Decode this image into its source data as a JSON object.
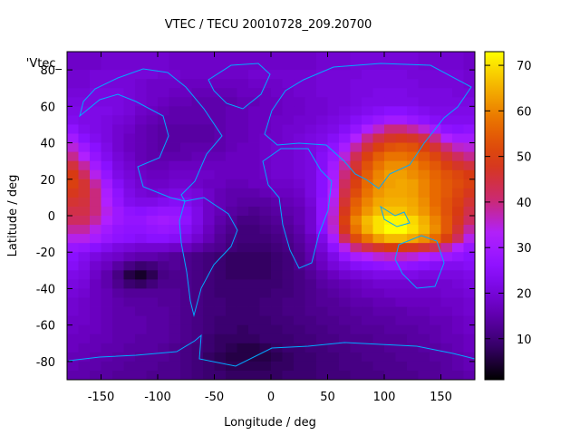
{
  "chart_data": {
    "type": "heatmap",
    "title": "VTEC / TECU 20010728_209.20700",
    "xlabel": "Longitude / deg",
    "ylabel": "Latitude / deg",
    "key_label": "'Vtec_",
    "xlim": [
      -180,
      180
    ],
    "ylim": [
      -90,
      90
    ],
    "xticks": [
      -150,
      -100,
      -50,
      0,
      50,
      100,
      150
    ],
    "yticks": [
      -80,
      -60,
      -40,
      -20,
      0,
      20,
      40,
      60,
      80
    ],
    "colorbar": {
      "min": 1,
      "max": 73,
      "ticks": [
        10,
        20,
        30,
        40,
        50,
        60,
        70
      ]
    },
    "palette": [
      "#000000",
      "#3b0070",
      "#6a00c0",
      "#8a10ff",
      "#b020ff",
      "#cc2a6a",
      "#d83a12",
      "#e86a00",
      "#f4b000",
      "#ffff00"
    ],
    "lons": [
      -175,
      -165,
      -155,
      -145,
      -135,
      -125,
      -115,
      -105,
      -95,
      -85,
      -75,
      -65,
      -55,
      -45,
      -35,
      -25,
      -15,
      -5,
      5,
      15,
      25,
      35,
      45,
      55,
      65,
      75,
      85,
      95,
      105,
      115,
      125,
      135,
      145,
      155,
      165,
      175
    ],
    "lats": [
      87.5,
      82.5,
      77.5,
      72.5,
      67.5,
      62.5,
      57.5,
      52.5,
      47.5,
      42.5,
      37.5,
      32.5,
      27.5,
      22.5,
      17.5,
      12.5,
      7.5,
      2.5,
      -2.5,
      -7.5,
      -12.5,
      -17.5,
      -22.5,
      -27.5,
      -32.5,
      -37.5,
      -42.5,
      -47.5,
      -52.5,
      -57.5,
      -62.5,
      -67.5,
      -72.5,
      -77.5,
      -82.5,
      -87.5
    ],
    "vtec": [
      [
        18,
        18,
        18,
        19,
        19,
        19,
        19,
        19,
        19,
        18,
        18,
        18,
        18,
        18,
        18,
        18,
        18,
        18,
        18,
        18,
        18,
        18,
        19,
        19,
        19,
        20,
        20,
        20,
        20,
        20,
        20,
        19,
        19,
        19,
        19,
        18
      ],
      [
        18,
        18,
        18,
        19,
        19,
        19,
        19,
        19,
        19,
        18,
        18,
        18,
        18,
        18,
        18,
        18,
        18,
        18,
        18,
        18,
        18,
        18,
        19,
        19,
        19,
        20,
        20,
        20,
        20,
        20,
        20,
        19,
        19,
        19,
        19,
        18
      ],
      [
        19,
        19,
        20,
        20,
        20,
        20,
        20,
        20,
        19,
        19,
        18,
        18,
        18,
        18,
        18,
        18,
        19,
        19,
        19,
        19,
        19,
        19,
        20,
        20,
        20,
        20,
        21,
        21,
        21,
        21,
        20,
        20,
        20,
        20,
        20,
        19
      ],
      [
        19,
        19,
        20,
        20,
        20,
        20,
        19,
        18,
        18,
        18,
        17,
        17,
        17,
        17,
        17,
        17,
        18,
        18,
        18,
        19,
        19,
        19,
        20,
        20,
        20,
        21,
        21,
        21,
        21,
        21,
        21,
        20,
        20,
        20,
        20,
        19
      ],
      [
        20,
        20,
        21,
        21,
        21,
        20,
        19,
        18,
        18,
        17,
        17,
        16,
        16,
        16,
        16,
        17,
        17,
        17,
        18,
        18,
        19,
        19,
        20,
        20,
        20,
        21,
        21,
        22,
        22,
        22,
        21,
        21,
        21,
        21,
        20,
        20
      ],
      [
        21,
        21,
        21,
        21,
        21,
        20,
        19,
        18,
        17,
        16,
        16,
        15,
        15,
        15,
        15,
        16,
        16,
        17,
        17,
        18,
        18,
        19,
        19,
        20,
        20,
        21,
        22,
        22,
        22,
        22,
        22,
        21,
        21,
        21,
        21,
        21
      ],
      [
        22,
        22,
        22,
        22,
        21,
        20,
        18,
        17,
        16,
        15,
        15,
        15,
        15,
        15,
        16,
        16,
        17,
        17,
        17,
        18,
        18,
        19,
        19,
        20,
        21,
        22,
        23,
        24,
        25,
        25,
        24,
        23,
        22,
        22,
        22,
        22
      ],
      [
        23,
        22,
        22,
        21,
        20,
        19,
        17,
        16,
        15,
        15,
        15,
        15,
        15,
        15,
        16,
        16,
        17,
        17,
        18,
        18,
        19,
        19,
        20,
        21,
        22,
        24,
        26,
        28,
        30,
        30,
        28,
        26,
        24,
        23,
        23,
        23
      ],
      [
        26,
        23,
        22,
        21,
        19,
        18,
        16,
        15,
        14,
        14,
        14,
        14,
        14,
        15,
        16,
        16,
        17,
        17,
        18,
        19,
        19,
        20,
        21,
        22,
        24,
        27,
        32,
        36,
        40,
        40,
        38,
        35,
        30,
        26,
        25,
        26
      ],
      [
        30,
        25,
        23,
        21,
        19,
        17,
        16,
        15,
        14,
        14,
        14,
        14,
        14,
        15,
        16,
        16,
        17,
        18,
        18,
        19,
        20,
        21,
        22,
        24,
        27,
        33,
        39,
        44,
        47,
        48,
        47,
        44,
        39,
        33,
        30,
        30
      ],
      [
        35,
        29,
        25,
        22,
        19,
        17,
        16,
        15,
        14,
        14,
        15,
        15,
        15,
        15,
        16,
        17,
        17,
        18,
        19,
        19,
        20,
        21,
        23,
        26,
        31,
        38,
        45,
        50,
        53,
        54,
        53,
        50,
        46,
        40,
        36,
        35
      ],
      [
        39,
        33,
        27,
        23,
        20,
        18,
        16,
        15,
        15,
        15,
        15,
        16,
        16,
        16,
        17,
        17,
        17,
        18,
        19,
        19,
        20,
        21,
        24,
        28,
        35,
        43,
        50,
        55,
        58,
        58,
        57,
        54,
        51,
        46,
        42,
        39
      ],
      [
        45,
        38,
        30,
        25,
        21,
        19,
        17,
        16,
        16,
        17,
        17,
        17,
        17,
        17,
        17,
        17,
        17,
        18,
        19,
        19,
        20,
        21,
        24,
        30,
        38,
        46,
        53,
        58,
        61,
        61,
        60,
        57,
        54,
        50,
        47,
        45
      ],
      [
        49,
        42,
        34,
        27,
        22,
        20,
        18,
        17,
        17,
        18,
        18,
        18,
        18,
        17,
        17,
        17,
        17,
        18,
        19,
        19,
        20,
        21,
        25,
        31,
        40,
        48,
        55,
        60,
        63,
        63,
        61,
        59,
        56,
        53,
        51,
        49
      ],
      [
        50,
        46,
        38,
        30,
        24,
        21,
        19,
        18,
        18,
        19,
        19,
        18,
        17,
        17,
        16,
        16,
        17,
        17,
        18,
        18,
        19,
        21,
        25,
        32,
        42,
        50,
        57,
        61,
        63,
        64,
        63,
        60,
        57,
        54,
        52,
        50
      ],
      [
        48,
        46,
        40,
        32,
        26,
        22,
        20,
        19,
        20,
        21,
        21,
        20,
        18,
        16,
        15,
        15,
        15,
        16,
        17,
        17,
        18,
        21,
        25,
        33,
        44,
        52,
        58,
        62,
        64,
        64,
        63,
        60,
        57,
        54,
        51,
        48
      ],
      [
        46,
        45,
        40,
        33,
        27,
        23,
        22,
        22,
        23,
        24,
        23,
        21,
        18,
        16,
        15,
        14,
        14,
        14,
        15,
        16,
        17,
        20,
        26,
        34,
        46,
        55,
        60,
        64,
        65,
        65,
        64,
        61,
        57,
        53,
        50,
        46
      ],
      [
        44,
        44,
        40,
        34,
        29,
        26,
        25,
        26,
        27,
        27,
        25,
        22,
        18,
        16,
        14,
        13,
        12,
        13,
        14,
        15,
        16,
        19,
        26,
        35,
        48,
        57,
        62,
        66,
        67,
        67,
        65,
        62,
        58,
        53,
        49,
        44
      ],
      [
        42,
        42,
        38,
        33,
        29,
        27,
        27,
        29,
        30,
        29,
        26,
        22,
        18,
        15,
        13,
        11,
        11,
        12,
        13,
        14,
        16,
        19,
        26,
        36,
        50,
        60,
        66,
        70,
        72,
        72,
        69,
        65,
        60,
        54,
        48,
        42
      ],
      [
        38,
        38,
        34,
        30,
        27,
        26,
        26,
        27,
        28,
        27,
        24,
        21,
        17,
        14,
        12,
        10,
        10,
        11,
        12,
        13,
        15,
        19,
        25,
        35,
        48,
        58,
        65,
        70,
        73,
        73,
        70,
        66,
        61,
        54,
        46,
        38
      ],
      [
        34,
        34,
        31,
        28,
        26,
        25,
        24,
        25,
        25,
        24,
        22,
        19,
        16,
        13,
        11,
        10,
        10,
        10,
        11,
        12,
        14,
        17,
        22,
        31,
        42,
        52,
        58,
        63,
        66,
        66,
        64,
        61,
        57,
        50,
        42,
        34
      ],
      [
        28,
        27,
        25,
        23,
        21,
        20,
        19,
        19,
        19,
        18,
        17,
        15,
        13,
        12,
        10,
        9,
        9,
        9,
        10,
        11,
        13,
        16,
        20,
        26,
        34,
        40,
        44,
        47,
        49,
        49,
        48,
        46,
        43,
        38,
        33,
        28
      ],
      [
        25,
        23,
        21,
        19,
        18,
        16,
        15,
        15,
        14,
        13,
        12,
        11,
        10,
        9,
        8,
        8,
        8,
        8,
        9,
        10,
        12,
        15,
        18,
        22,
        27,
        31,
        33,
        35,
        36,
        36,
        35,
        33,
        31,
        29,
        27,
        25
      ],
      [
        24,
        22,
        19,
        17,
        14,
        11,
        9,
        10,
        12,
        13,
        12,
        11,
        10,
        9,
        8,
        8,
        8,
        8,
        9,
        10,
        12,
        14,
        17,
        20,
        22,
        24,
        25,
        26,
        27,
        27,
        26,
        25,
        24,
        23,
        23,
        24
      ],
      [
        22,
        21,
        18,
        15,
        11,
        6,
        4,
        7,
        11,
        12,
        12,
        11,
        10,
        9,
        8,
        8,
        8,
        8,
        9,
        10,
        11,
        13,
        15,
        17,
        19,
        20,
        21,
        22,
        22,
        22,
        22,
        21,
        21,
        21,
        21,
        22
      ],
      [
        21,
        20,
        17,
        15,
        12,
        9,
        8,
        10,
        12,
        12,
        12,
        11,
        10,
        9,
        9,
        9,
        9,
        9,
        9,
        10,
        11,
        12,
        14,
        15,
        16,
        17,
        18,
        19,
        19,
        19,
        19,
        19,
        19,
        19,
        20,
        21
      ],
      [
        20,
        19,
        17,
        16,
        14,
        13,
        13,
        13,
        13,
        13,
        12,
        11,
        10,
        9,
        9,
        9,
        9,
        9,
        10,
        10,
        11,
        12,
        13,
        14,
        15,
        16,
        17,
        17,
        18,
        18,
        18,
        18,
        18,
        19,
        19,
        20
      ],
      [
        19,
        18,
        17,
        16,
        15,
        14,
        14,
        14,
        13,
        13,
        12,
        11,
        10,
        10,
        9,
        9,
        9,
        10,
        10,
        11,
        11,
        12,
        13,
        13,
        14,
        15,
        15,
        16,
        16,
        17,
        17,
        17,
        17,
        18,
        18,
        19
      ],
      [
        19,
        18,
        17,
        16,
        15,
        15,
        14,
        14,
        14,
        13,
        12,
        11,
        10,
        10,
        9,
        9,
        9,
        10,
        10,
        11,
        11,
        12,
        12,
        13,
        13,
        14,
        14,
        15,
        15,
        15,
        16,
        16,
        17,
        17,
        18,
        19
      ],
      [
        18,
        18,
        17,
        16,
        15,
        15,
        15,
        14,
        14,
        13,
        12,
        11,
        10,
        9,
        9,
        9,
        9,
        9,
        10,
        10,
        11,
        11,
        12,
        12,
        13,
        13,
        14,
        14,
        14,
        15,
        15,
        15,
        16,
        16,
        17,
        18
      ],
      [
        18,
        17,
        17,
        16,
        15,
        15,
        15,
        14,
        14,
        13,
        12,
        11,
        10,
        9,
        9,
        8,
        9,
        9,
        9,
        10,
        10,
        11,
        11,
        12,
        12,
        13,
        13,
        13,
        14,
        14,
        14,
        15,
        15,
        16,
        17,
        18
      ],
      [
        17,
        17,
        16,
        16,
        15,
        15,
        14,
        14,
        14,
        13,
        12,
        11,
        9,
        8,
        8,
        8,
        8,
        9,
        9,
        9,
        10,
        10,
        11,
        11,
        12,
        12,
        12,
        13,
        13,
        13,
        14,
        14,
        15,
        16,
        16,
        17
      ],
      [
        17,
        16,
        16,
        15,
        15,
        14,
        14,
        14,
        13,
        12,
        11,
        10,
        9,
        8,
        7,
        6,
        6,
        7,
        8,
        9,
        9,
        10,
        10,
        11,
        11,
        12,
        12,
        12,
        13,
        13,
        13,
        14,
        14,
        15,
        16,
        17
      ],
      [
        16,
        16,
        15,
        15,
        14,
        14,
        13,
        13,
        13,
        12,
        11,
        10,
        8,
        7,
        6,
        6,
        6,
        6,
        7,
        8,
        9,
        9,
        10,
        10,
        11,
        11,
        12,
        12,
        12,
        13,
        13,
        13,
        14,
        14,
        15,
        16
      ],
      [
        16,
        15,
        15,
        14,
        14,
        13,
        13,
        13,
        12,
        12,
        11,
        10,
        9,
        8,
        7,
        7,
        7,
        7,
        8,
        8,
        9,
        9,
        10,
        10,
        11,
        11,
        11,
        12,
        12,
        12,
        13,
        13,
        13,
        14,
        15,
        16
      ],
      [
        15,
        15,
        14,
        14,
        13,
        13,
        13,
        12,
        12,
        12,
        11,
        10,
        9,
        9,
        8,
        8,
        8,
        8,
        8,
        9,
        9,
        9,
        10,
        10,
        10,
        11,
        11,
        11,
        12,
        12,
        12,
        13,
        13,
        14,
        14,
        15
      ]
    ]
  }
}
